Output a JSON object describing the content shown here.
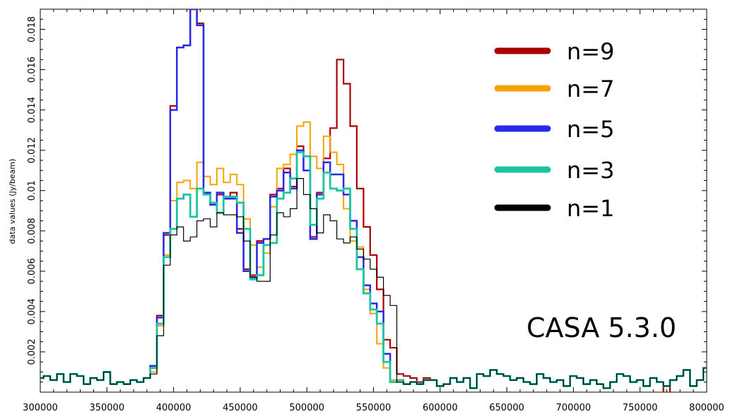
{
  "chart_data": {
    "type": "line",
    "step": true,
    "title": "",
    "xlabel": "",
    "ylabel": "data values (Jy/beam)",
    "xlim": [
      300000,
      800000
    ],
    "ylim": [
      0,
      0.019
    ],
    "x_ticks": [
      300000,
      350000,
      400000,
      450000,
      500000,
      550000,
      600000,
      650000,
      700000,
      750000,
      800000
    ],
    "x_tick_labels": [
      "300000",
      "350000",
      "400000",
      "450000",
      "500000",
      "550000",
      "600000",
      "650000",
      "700000",
      "750000",
      "800000"
    ],
    "y_ticks": [
      0.002,
      0.004,
      0.006,
      0.008,
      0.01,
      0.012,
      0.014,
      0.016,
      0.018
    ],
    "y_tick_labels": [
      "0.002",
      "0.004",
      "0.006",
      "0.008",
      "0.01",
      "0.012",
      "0.014",
      "0.016",
      "0.018"
    ],
    "grid": false,
    "legend_position": "top-right",
    "annotation": "CASA 5.3.0",
    "x": [
      300000,
      305000,
      310000,
      315000,
      320000,
      325000,
      330000,
      335000,
      340000,
      345000,
      350000,
      355000,
      360000,
      365000,
      370000,
      375000,
      380000,
      385000,
      390000,
      395000,
      400000,
      405000,
      410000,
      415000,
      420000,
      425000,
      430000,
      435000,
      440000,
      445000,
      450000,
      455000,
      460000,
      465000,
      470000,
      475000,
      480000,
      485000,
      490000,
      495000,
      500000,
      505000,
      510000,
      515000,
      520000,
      525000,
      530000,
      535000,
      540000,
      545000,
      550000,
      555000,
      560000,
      565000,
      570000,
      575000,
      580000,
      585000,
      590000,
      595000,
      600000,
      605000,
      610000,
      615000,
      620000,
      625000,
      630000,
      635000,
      640000,
      645000,
      650000,
      655000,
      660000,
      665000,
      670000,
      675000,
      680000,
      685000,
      690000,
      695000,
      700000,
      705000,
      710000,
      715000,
      720000,
      725000,
      730000,
      735000,
      740000,
      745000,
      750000,
      755000,
      760000,
      765000,
      770000,
      775000,
      780000,
      785000,
      790000,
      795000,
      800000
    ],
    "series": [
      {
        "name": "n=9",
        "color": "#aa0000",
        "width": 2.2,
        "values": [
          0.0007,
          0.0008,
          0.0006,
          0.0009,
          0.0005,
          0.0009,
          0.0008,
          0.0004,
          0.0007,
          0.0006,
          0.001,
          0.0004,
          0.0005,
          0.0004,
          0.0006,
          0.0005,
          0.0007,
          0.0013,
          0.0038,
          0.0078,
          0.0142,
          0.0171,
          0.0172,
          0.019,
          0.0183,
          0.0099,
          0.0093,
          0.0098,
          0.0096,
          0.0099,
          0.0081,
          0.0061,
          0.0058,
          0.0075,
          0.0076,
          0.0098,
          0.0101,
          0.0111,
          0.0102,
          0.0122,
          0.011,
          0.0077,
          0.0099,
          0.0116,
          0.0131,
          0.0165,
          0.0153,
          0.0132,
          0.0101,
          0.0082,
          0.0068,
          0.0051,
          0.0026,
          0.0022,
          0.0009,
          0.0008,
          0.0007,
          0.0005,
          0.0007,
          0.0006,
          0.0003,
          0.0004,
          0.0007,
          0.0005,
          0.0007,
          0.0002,
          0.0009,
          0.0008,
          0.0011,
          0.0009,
          0.0008,
          0.0006,
          0.0007,
          0.0005,
          0.0004,
          0.0009,
          0.0007,
          0.0005,
          0.0006,
          0.0003,
          0.0008,
          0.0007,
          0.0004,
          0.0006,
          0.0004,
          0.0002,
          0.0005,
          0.0009,
          0.0008,
          0.0005,
          0.0006,
          0.0003,
          0.0007,
          0.0005,
          -0.0001,
          0.0006,
          0.0008,
          0.0011,
          0.0003,
          0.0006,
          0.0012
        ]
      },
      {
        "name": "n=7",
        "color": "#f5a300",
        "width": 2,
        "values": [
          0.0007,
          0.0008,
          0.0006,
          0.0009,
          0.0005,
          0.0009,
          0.0008,
          0.0004,
          0.0007,
          0.0006,
          0.001,
          0.0004,
          0.0005,
          0.0004,
          0.0006,
          0.0005,
          0.0007,
          0.001,
          0.0033,
          0.0068,
          0.0095,
          0.0104,
          0.0105,
          0.0101,
          0.0114,
          0.0107,
          0.0103,
          0.0111,
          0.0104,
          0.0108,
          0.0103,
          0.0086,
          0.0073,
          0.0062,
          0.0069,
          0.0092,
          0.0111,
          0.0113,
          0.0118,
          0.0132,
          0.0134,
          0.0117,
          0.0111,
          0.0127,
          0.0119,
          0.0113,
          0.0091,
          0.0075,
          0.0072,
          0.0051,
          0.0039,
          0.0024,
          0.0012,
          0.0006,
          0.0005,
          0.0004,
          0.0005,
          0.0004,
          0.0006,
          0.0006,
          0.0003,
          0.0004,
          0.0007,
          0.0005,
          0.0007,
          0.0002,
          0.0009,
          0.0008,
          0.0011,
          0.0009,
          0.0008,
          0.0006,
          0.0007,
          0.0005,
          0.0004,
          0.0009,
          0.0007,
          0.0005,
          0.0006,
          0.0003,
          0.0008,
          0.0007,
          0.0004,
          0.0006,
          0.0004,
          0.0002,
          0.0005,
          0.0009,
          0.0008,
          0.0005,
          0.0006,
          0.0003,
          0.0007,
          0.0005,
          0.0003,
          0.0006,
          0.0008,
          0.0011,
          0.0003,
          0.0006,
          0.0012
        ]
      },
      {
        "name": "n=5",
        "color": "#2929e8",
        "width": 2.5,
        "values": [
          0.0007,
          0.0008,
          0.0006,
          0.0009,
          0.0005,
          0.0009,
          0.0008,
          0.0004,
          0.0007,
          0.0006,
          0.001,
          0.0004,
          0.0005,
          0.0004,
          0.0006,
          0.0005,
          0.0007,
          0.0013,
          0.0037,
          0.0079,
          0.014,
          0.0171,
          0.0172,
          0.019,
          0.0182,
          0.0099,
          0.0093,
          0.0099,
          0.0096,
          0.0096,
          0.0079,
          0.006,
          0.0057,
          0.0074,
          0.0076,
          0.0097,
          0.01,
          0.0109,
          0.0101,
          0.012,
          0.011,
          0.0076,
          0.0098,
          0.0114,
          0.0108,
          0.0108,
          0.0098,
          0.0085,
          0.0067,
          0.0053,
          0.0044,
          0.004,
          0.0019,
          0.0005,
          0.0006,
          0.0004,
          0.0005,
          0.0004,
          0.0006,
          0.0006,
          0.0003,
          0.0004,
          0.0007,
          0.0005,
          0.0007,
          0.0002,
          0.0009,
          0.0008,
          0.0011,
          0.0009,
          0.0008,
          0.0006,
          0.0007,
          0.0005,
          0.0004,
          0.0009,
          0.0007,
          0.0005,
          0.0006,
          0.0003,
          0.0008,
          0.0007,
          0.0004,
          0.0006,
          0.0004,
          0.0002,
          0.0005,
          0.0009,
          0.0008,
          0.0005,
          0.0006,
          0.0003,
          0.0007,
          0.0005,
          0.0003,
          0.0006,
          0.0008,
          0.0011,
          0.0003,
          0.0006,
          0.0012
        ]
      },
      {
        "name": "n=3",
        "color": "#1ec4a2",
        "width": 2.8,
        "values": [
          0.0007,
          0.0008,
          0.0006,
          0.0009,
          0.0005,
          0.0009,
          0.0008,
          0.0004,
          0.0007,
          0.0006,
          0.001,
          0.0004,
          0.0005,
          0.0004,
          0.0006,
          0.0005,
          0.0007,
          0.0012,
          0.0034,
          0.0067,
          0.0081,
          0.0096,
          0.0098,
          0.0087,
          0.0101,
          0.0098,
          0.0094,
          0.0089,
          0.0097,
          0.0097,
          0.0094,
          0.0081,
          0.0056,
          0.0058,
          0.0073,
          0.0074,
          0.0096,
          0.0099,
          0.0106,
          0.0119,
          0.0117,
          0.0083,
          0.0096,
          0.0109,
          0.0101,
          0.01,
          0.0101,
          0.0081,
          0.0061,
          0.0049,
          0.0041,
          0.0034,
          0.0015,
          0.0005,
          0.0006,
          0.0004,
          0.0005,
          0.0004,
          0.0006,
          0.0006,
          0.0003,
          0.0004,
          0.0007,
          0.0005,
          0.0007,
          0.0002,
          0.0009,
          0.0008,
          0.0011,
          0.0009,
          0.0008,
          0.0006,
          0.0007,
          0.0005,
          0.0004,
          0.0009,
          0.0007,
          0.0005,
          0.0006,
          0.0003,
          0.0008,
          0.0007,
          0.0004,
          0.0006,
          0.0004,
          0.0002,
          0.0005,
          0.0009,
          0.0008,
          0.0005,
          0.0006,
          0.0003,
          0.0007,
          0.0005,
          0.0003,
          0.0006,
          0.0008,
          0.0011,
          0.0003,
          0.0006,
          0.0012
        ]
      },
      {
        "name": "n=1",
        "color": "#000000",
        "width": 1.2,
        "values": [
          0.0007,
          0.0008,
          0.0006,
          0.0009,
          0.0005,
          0.0009,
          0.0008,
          0.0004,
          0.0007,
          0.0006,
          0.001,
          0.0004,
          0.0005,
          0.0004,
          0.0006,
          0.0005,
          0.0007,
          0.0009,
          0.0028,
          0.0063,
          0.0078,
          0.0082,
          0.0075,
          0.0077,
          0.0085,
          0.0086,
          0.0082,
          0.0089,
          0.0088,
          0.0088,
          0.0087,
          0.0075,
          0.0057,
          0.0055,
          0.0055,
          0.0078,
          0.0089,
          0.0087,
          0.0091,
          0.0106,
          0.0098,
          0.0091,
          0.0079,
          0.0088,
          0.0085,
          0.0076,
          0.0074,
          0.0077,
          0.0071,
          0.0066,
          0.0061,
          0.0057,
          0.0048,
          0.0043,
          0.0005,
          0.0004,
          0.0005,
          0.0004,
          0.0006,
          0.0006,
          0.0003,
          0.0004,
          0.0007,
          0.0005,
          0.0007,
          0.0002,
          0.0009,
          0.0008,
          0.0011,
          0.0009,
          0.0008,
          0.0006,
          0.0007,
          0.0005,
          0.0004,
          0.0009,
          0.0007,
          0.0005,
          0.0006,
          0.0003,
          0.0008,
          0.0007,
          0.0004,
          0.0006,
          0.0004,
          0.0002,
          0.0005,
          0.0009,
          0.0008,
          0.0005,
          0.0006,
          0.0003,
          0.0007,
          0.0005,
          0.0003,
          0.0006,
          0.0008,
          0.0011,
          0.0003,
          0.0006,
          0.0012
        ]
      }
    ]
  }
}
